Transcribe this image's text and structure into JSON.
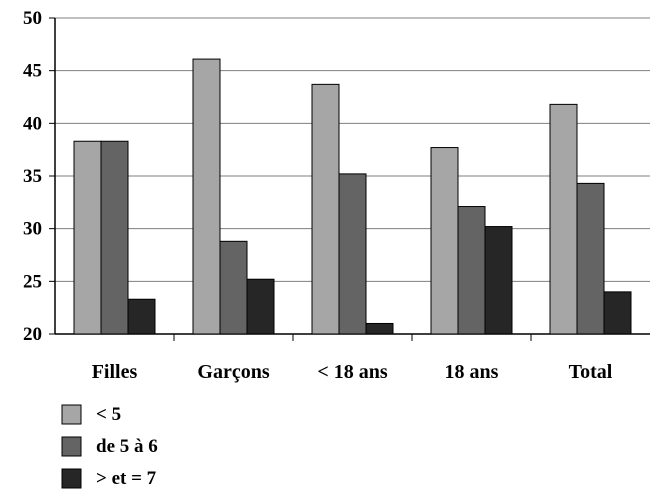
{
  "chart_data": {
    "type": "bar",
    "title": "",
    "xlabel": "",
    "ylabel": "",
    "categories": [
      "Filles",
      "Garçons",
      "< 18 ans",
      "18 ans",
      "Total"
    ],
    "ylim": [
      20,
      50
    ],
    "yticks": [
      "20",
      "25",
      "30",
      "35",
      "40",
      "45",
      "50"
    ],
    "grid": true,
    "legend_position": "bottom-left",
    "series": [
      {
        "name": "< 5",
        "values": [
          38.3,
          46.1,
          43.7,
          37.7,
          41.8
        ],
        "color": "#a6a6a6"
      },
      {
        "name": "de 5 à 6",
        "values": [
          38.3,
          28.8,
          35.2,
          32.1,
          34.3
        ],
        "color": "#646464"
      },
      {
        "name": "> et = 7",
        "values": [
          23.3,
          25.2,
          21.0,
          30.2,
          24.0
        ],
        "color": "#262626"
      }
    ]
  }
}
